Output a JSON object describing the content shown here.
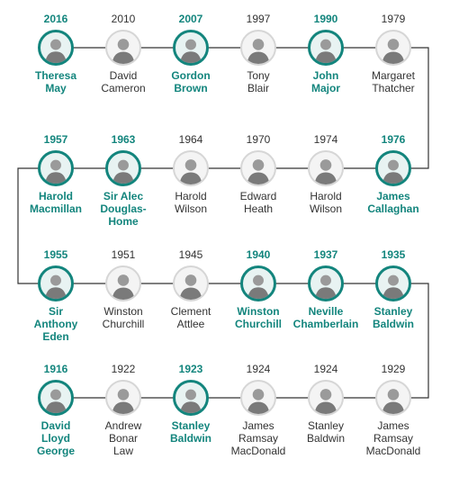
{
  "colors": {
    "accent": "#13857d",
    "line": "#333333",
    "text": "#333333"
  },
  "rows": [
    [
      {
        "year": "2016",
        "name": "Theresa\nMay",
        "highlight": true
      },
      {
        "year": "2010",
        "name": "David\nCameron",
        "highlight": false
      },
      {
        "year": "2007",
        "name": "Gordon\nBrown",
        "highlight": true
      },
      {
        "year": "1997",
        "name": "Tony\nBlair",
        "highlight": false
      },
      {
        "year": "1990",
        "name": "John\nMajor",
        "highlight": true
      },
      {
        "year": "1979",
        "name": "Margaret\nThatcher",
        "highlight": false
      }
    ],
    [
      {
        "year": "1957",
        "name": "Harold\nMacmillan",
        "highlight": true
      },
      {
        "year": "1963",
        "name": "Sir Alec\nDouglas-\nHome",
        "highlight": true
      },
      {
        "year": "1964",
        "name": "Harold\nWilson",
        "highlight": false
      },
      {
        "year": "1970",
        "name": "Edward\nHeath",
        "highlight": false
      },
      {
        "year": "1974",
        "name": "Harold\nWilson",
        "highlight": false
      },
      {
        "year": "1976",
        "name": "James\nCallaghan",
        "highlight": true
      }
    ],
    [
      {
        "year": "1955",
        "name": "Sir\nAnthony\nEden",
        "highlight": true
      },
      {
        "year": "1951",
        "name": "Winston\nChurchill",
        "highlight": false
      },
      {
        "year": "1945",
        "name": "Clement\nAttlee",
        "highlight": false
      },
      {
        "year": "1940",
        "name": "Winston\nChurchill",
        "highlight": true
      },
      {
        "year": "1937",
        "name": "Neville\nChamberlain",
        "highlight": true
      },
      {
        "year": "1935",
        "name": "Stanley\nBaldwin",
        "highlight": true
      }
    ],
    [
      {
        "year": "1916",
        "name": "David\nLloyd\nGeorge",
        "highlight": true
      },
      {
        "year": "1922",
        "name": "Andrew\nBonar\nLaw",
        "highlight": false
      },
      {
        "year": "1923",
        "name": "Stanley\nBaldwin",
        "highlight": true
      },
      {
        "year": "1924",
        "name": "James\nRamsay\nMacDonald",
        "highlight": false
      },
      {
        "year": "1924",
        "name": "Stanley\nBaldwin",
        "highlight": false
      },
      {
        "year": "1929",
        "name": "James\nRamsay\nMacDonald",
        "highlight": false
      }
    ]
  ]
}
